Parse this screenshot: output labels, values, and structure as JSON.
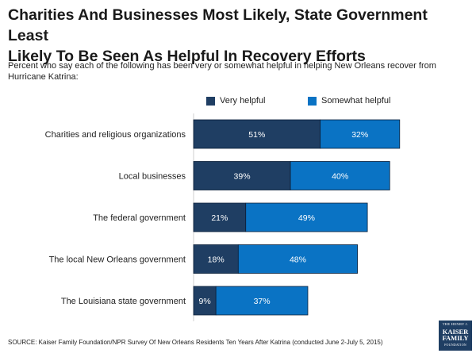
{
  "title_line1": "Charities And Businesses Most Likely, State Government Least",
  "title_line2": "Likely To Be Seen As Helpful In Recovery Efforts",
  "subtitle": "Percent who say each of the following has been very or somewhat helpful in helping New Orleans recover from Hurricane Katrina:",
  "source": "SOURCE: Kaiser Family Foundation/NPR Survey Of New Orleans Residents Ten Years After Katrina (conducted June 2-July 5, 2015)",
  "logo": {
    "line1": "THE HENRY J.",
    "line2": "KAISER",
    "line3": "FAMILY",
    "line4": "FOUNDATION"
  },
  "colors": {
    "very": "#1f3e63",
    "somewhat": "#0a73c4"
  },
  "chart_data": {
    "type": "bar",
    "orientation": "horizontal",
    "stacked": true,
    "title": "Charities And Businesses Most Likely, State Government Least Likely To Be Seen As Helpful In Recovery Efforts",
    "xlabel": "",
    "ylabel": "",
    "legend_position": "top",
    "categories": [
      "Charities and religious organizations",
      "Local businesses",
      "The federal government",
      "The local New Orleans government",
      "The Louisiana state government"
    ],
    "series": [
      {
        "name": "Very helpful",
        "values": [
          51,
          39,
          21,
          18,
          9
        ]
      },
      {
        "name": "Somewhat helpful",
        "values": [
          32,
          40,
          49,
          48,
          37
        ]
      }
    ],
    "value_suffix": "%",
    "xlim": [
      0,
      100
    ]
  }
}
